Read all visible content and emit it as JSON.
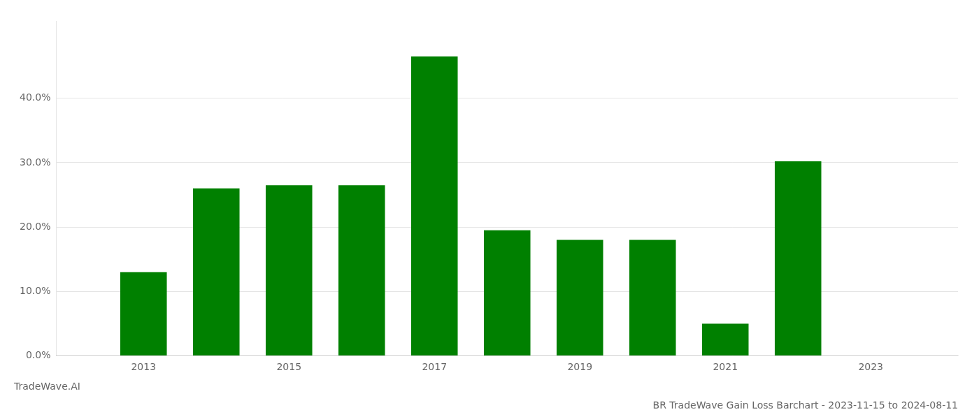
{
  "chart_data": {
    "type": "bar",
    "title": "BR TradeWave Gain Loss Barchart - 2023-11-15 to 2024-08-11",
    "annotations": [
      "TradeWave.AI"
    ],
    "x": [
      2013,
      2014,
      2015,
      2016,
      2017,
      2018,
      2019,
      2020,
      2021,
      2022,
      2023
    ],
    "values": [
      0.13,
      0.26,
      0.265,
      0.265,
      0.465,
      0.195,
      0.18,
      0.18,
      0.05,
      0.302,
      null
    ],
    "color": "#008000",
    "xlim": [
      2011.8,
      2024.2
    ],
    "xticks": [
      2013,
      2015,
      2017,
      2019,
      2021,
      2023
    ],
    "ylim": [
      0.0,
      0.52
    ],
    "yticks": [
      {
        "value": 0.0,
        "label": "0.0%"
      },
      {
        "value": 0.1,
        "label": "10.0%"
      },
      {
        "value": 0.2,
        "label": "20.0%"
      },
      {
        "value": 0.3,
        "label": "30.0%"
      },
      {
        "value": 0.4,
        "label": "40.0%"
      }
    ],
    "grid": true
  }
}
